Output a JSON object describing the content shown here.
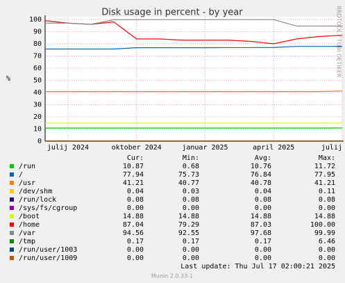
{
  "chart_data": {
    "type": "line",
    "title": "Disk usage in percent - by year",
    "y_label": "%",
    "side_note": "RRDTOOL / TOBI OETIKER",
    "x": [
      "2024-06",
      "2024-07",
      "2024-08",
      "2024-09",
      "2024-10",
      "2024-11",
      "2024-12",
      "2025-01",
      "2025-02",
      "2025-03",
      "2025-04",
      "2025-05",
      "2025-06",
      "2025-07"
    ],
    "xlim": [
      "2024-06",
      "2025-07"
    ],
    "xticks": [
      {
        "value": "2024-07",
        "label": "julij 2024"
      },
      {
        "value": "2024-10",
        "label": "oktober 2024"
      },
      {
        "value": "2025-01",
        "label": "januar 2025"
      },
      {
        "value": "2025-04",
        "label": "april 2025"
      },
      {
        "value": "2025-07",
        "label": "julij 2025"
      }
    ],
    "ylim": [
      0,
      100
    ],
    "yticks": [
      0,
      10,
      20,
      30,
      40,
      50,
      60,
      70,
      80,
      90,
      100
    ],
    "grid": true,
    "stat_headers": [
      "Cur:",
      "Min:",
      "Avg:",
      "Max:"
    ],
    "series": [
      {
        "name": "/run",
        "color": "#00cc00",
        "values": [
          10.8,
          10.8,
          10.8,
          10.8,
          10.8,
          10.8,
          10.8,
          10.8,
          10.8,
          10.8,
          10.8,
          10.8,
          10.8,
          10.87
        ],
        "stats": [
          "10.87",
          "0.68",
          "10.76",
          "11.72"
        ]
      },
      {
        "name": "/",
        "color": "#0066b3",
        "values": [
          75.7,
          75.7,
          75.7,
          75.7,
          76.8,
          76.8,
          76.8,
          76.8,
          76.9,
          76.9,
          77,
          77.9,
          77.9,
          77.94
        ],
        "stats": [
          "77.94",
          "75.73",
          "76.84",
          "77.95"
        ]
      },
      {
        "name": "/usr",
        "color": "#ff8000",
        "values": [
          40.8,
          40.8,
          40.8,
          40.8,
          40.8,
          40.8,
          40.8,
          40.8,
          40.8,
          40.8,
          40.8,
          40.8,
          40.8,
          41.21
        ],
        "stats": [
          "41.21",
          "40.77",
          "40.78",
          "41.21"
        ]
      },
      {
        "name": "/dev/shm",
        "color": "#ffcc00",
        "values": [
          0.04,
          0.04,
          0.04,
          0.04,
          0.04,
          0.04,
          0.04,
          0.04,
          0.04,
          0.04,
          0.04,
          0.04,
          0.04,
          0.04
        ],
        "stats": [
          "0.04",
          "0.03",
          "0.04",
          "0.11"
        ]
      },
      {
        "name": "/run/lock",
        "color": "#330099",
        "values": [
          0.08,
          0.08,
          0.08,
          0.08,
          0.08,
          0.08,
          0.08,
          0.08,
          0.08,
          0.08,
          0.08,
          0.08,
          0.08,
          0.08
        ],
        "stats": [
          "0.08",
          "0.08",
          "0.08",
          "0.08"
        ]
      },
      {
        "name": "/sys/fs/cgroup",
        "color": "#990099",
        "values": [
          0,
          0,
          0,
          0,
          0,
          0,
          0,
          0,
          0,
          0,
          0,
          0,
          0,
          0
        ],
        "stats": [
          "0.00",
          "0.00",
          "0.00",
          "0.00"
        ]
      },
      {
        "name": "/boot",
        "color": "#ccff00",
        "values": [
          14.88,
          14.88,
          14.88,
          14.88,
          14.88,
          14.88,
          14.88,
          14.88,
          14.88,
          14.88,
          14.88,
          14.88,
          14.88,
          14.88
        ],
        "stats": [
          "14.88",
          "14.88",
          "14.88",
          "14.88"
        ]
      },
      {
        "name": "/home",
        "color": "#ff0000",
        "values": [
          99,
          97,
          96,
          98,
          84,
          84,
          83,
          83,
          83,
          82,
          80,
          84,
          86,
          87.04
        ],
        "stats": [
          "87.04",
          "79.29",
          "87.03",
          "100.00"
        ]
      },
      {
        "name": "/var",
        "color": "#888888",
        "values": [
          97,
          97,
          96,
          99.8,
          99.9,
          99.9,
          99.9,
          99.9,
          99.9,
          99.9,
          99.9,
          94.6,
          94.6,
          94.56
        ],
        "stats": [
          "94.56",
          "92.55",
          "97.68",
          "99.99"
        ]
      },
      {
        "name": "/tmp",
        "color": "#008f00",
        "values": [
          0.17,
          0.17,
          0.17,
          0.17,
          0.17,
          0.17,
          0.17,
          0.17,
          0.17,
          0.17,
          0.17,
          0.17,
          0.17,
          0.17
        ],
        "stats": [
          "0.17",
          "0.17",
          "0.17",
          "6.46"
        ]
      },
      {
        "name": "/run/user/1003",
        "color": "#00487d",
        "values": [
          0,
          0,
          0,
          0,
          0,
          0,
          0,
          0,
          0,
          0,
          0,
          0,
          0,
          0
        ],
        "stats": [
          "0.00",
          "0.00",
          "0.00",
          "0.00"
        ]
      },
      {
        "name": "/run/user/1009",
        "color": "#b35a00",
        "values": [
          0,
          0,
          0,
          0,
          0,
          0,
          0,
          0,
          0,
          0,
          0,
          0,
          0,
          0
        ],
        "stats": [
          "0.00",
          "0.00",
          "0.00",
          "0.00"
        ]
      }
    ],
    "last_update": "Last update: Thu Jul 17 02:00:21 2025",
    "footer": "Munin 2.0.33-1"
  }
}
